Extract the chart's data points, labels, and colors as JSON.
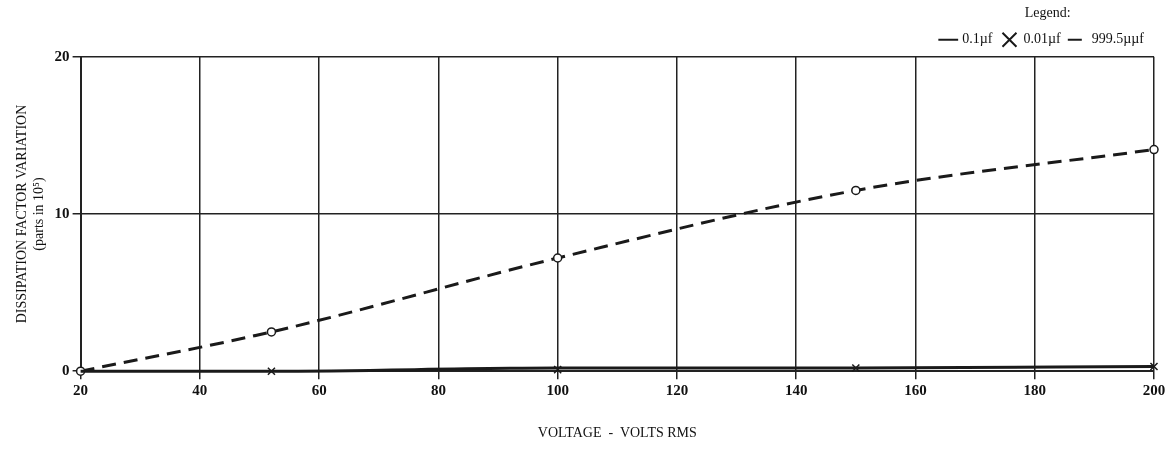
{
  "chart_data": {
    "type": "line",
    "xlabel": "VOLTAGE  -  VOLTS RMS",
    "ylabel": "DISSIPATION FACTOR VARIATION\n(parts in 10⁵)",
    "legend_title": "Legend:",
    "legend": "top right",
    "grid": true,
    "xlim": [
      20,
      200
    ],
    "xticks": [
      20,
      40,
      60,
      80,
      100,
      120,
      140,
      160,
      180,
      200
    ],
    "ylim": [
      0,
      20
    ],
    "yticks": [
      0,
      10,
      20
    ],
    "series": [
      {
        "name": "0.1µf",
        "color": "#1a1a1a",
        "marker": "none",
        "line_style": "solid",
        "x": [
          20,
          52,
          100,
          150,
          200
        ],
        "values": [
          0,
          0,
          0.2,
          0.2,
          0.3
        ]
      },
      {
        "name": "0.01µf",
        "type": "scatter",
        "color": "#1a1a1a",
        "marker": "cross",
        "x": [
          52,
          100,
          150,
          200
        ],
        "values": [
          0,
          0.1,
          0.2,
          0.3
        ]
      },
      {
        "name": "999.5µµf",
        "color": "#1a1a1a",
        "marker": "circle",
        "line_style": "dashed",
        "x": [
          20,
          52,
          100,
          150,
          200
        ],
        "values": [
          0,
          2.5,
          7.2,
          11.5,
          14.1
        ]
      }
    ]
  }
}
